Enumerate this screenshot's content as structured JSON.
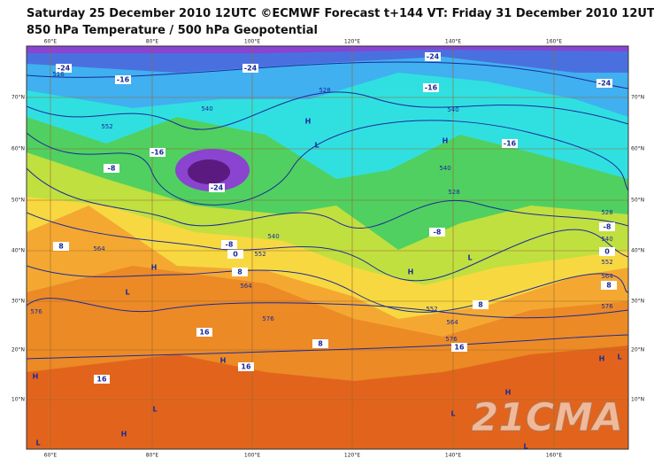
{
  "header": {
    "title": "Saturday 25 December 2010 12UTC ©ECMWF Forecast t+144 VT: Friday 31 December 2010 12UTC",
    "subtitle": "850 hPa Temperature / 500 hPa Geopotential"
  },
  "longitudes": [
    "60°E",
    "80°E",
    "100°E",
    "120°E",
    "140°E",
    "160°E"
  ],
  "latitudes": [
    "70°N",
    "60°N",
    "50°N",
    "40°N",
    "30°N",
    "20°N",
    "10°N"
  ],
  "temperature_labels": [
    "-24",
    "-24",
    "-24",
    "-24",
    "-16",
    "-16",
    "-16",
    "-16",
    "-8",
    "-24",
    "-8",
    "0",
    "-8",
    "-8",
    "8",
    "0",
    "8",
    "8",
    "8",
    "8",
    "16",
    "16",
    "16",
    "16"
  ],
  "geopotential_labels": [
    "516",
    "528",
    "540",
    "552",
    "540",
    "528",
    "540",
    "540",
    "552",
    "564",
    "576",
    "528",
    "540",
    "552",
    "564",
    "576",
    "552",
    "564",
    "576",
    "576",
    "564"
  ],
  "pressure_centers": [
    "H",
    "L",
    "H",
    "H",
    "L",
    "H",
    "L",
    "H",
    "L",
    "H",
    "L",
    "L",
    "H",
    "H",
    "L",
    "L",
    "H"
  ],
  "watermark": "21CMA"
}
